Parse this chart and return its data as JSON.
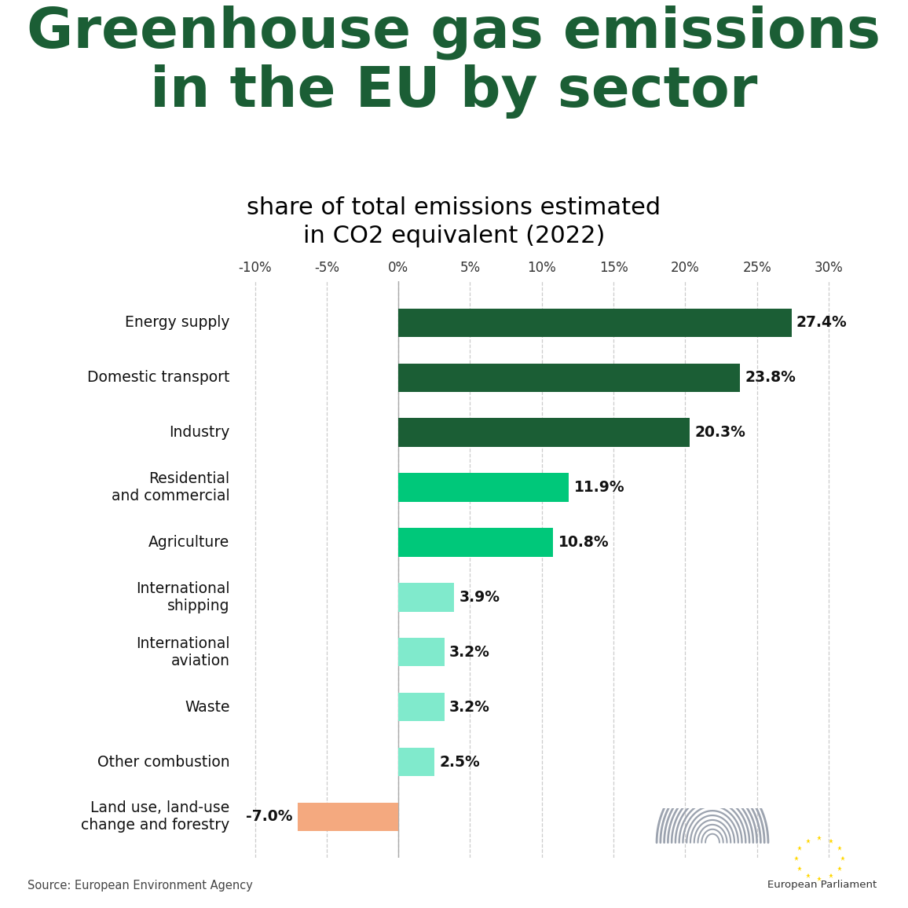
{
  "title_line1": "Greenhouse gas emissions",
  "title_line2": "in the EU by sector",
  "subtitle": "share of total emissions estimated\nin CO2 equivalent (2022)",
  "source": "Source: European Environment Agency",
  "ep_label": "European Parliament",
  "categories": [
    "Energy supply",
    "Domestic transport",
    "Industry",
    "Residential\nand commercial",
    "Agriculture",
    "International\nshipping",
    "International\naviation",
    "Waste",
    "Other combustion",
    "Land use, land-use\nchange and forestry"
  ],
  "values": [
    27.4,
    23.8,
    20.3,
    11.9,
    10.8,
    3.9,
    3.2,
    3.2,
    2.5,
    -7.0
  ],
  "bar_colors": [
    "#1b5e35",
    "#1b5e35",
    "#1b5e35",
    "#00c87a",
    "#00c87a",
    "#80eacc",
    "#80eacc",
    "#80eacc",
    "#80eacc",
    "#f4a97f"
  ],
  "title_color": "#1b5e35",
  "subtitle_color": "#000000",
  "xlim": [
    -11,
    33
  ],
  "xticks": [
    -10,
    -5,
    0,
    5,
    10,
    15,
    20,
    25,
    30
  ],
  "xtick_labels": [
    "-10%",
    "-5%",
    "0%",
    "5%",
    "10%",
    "15%",
    "20%",
    "25%",
    "30%"
  ],
  "background_color": "#ffffff",
  "bar_height": 0.52,
  "grid_color": "#cccccc",
  "value_label_fontsize": 13.5,
  "ytick_fontsize": 13.5,
  "xtick_fontsize": 12
}
